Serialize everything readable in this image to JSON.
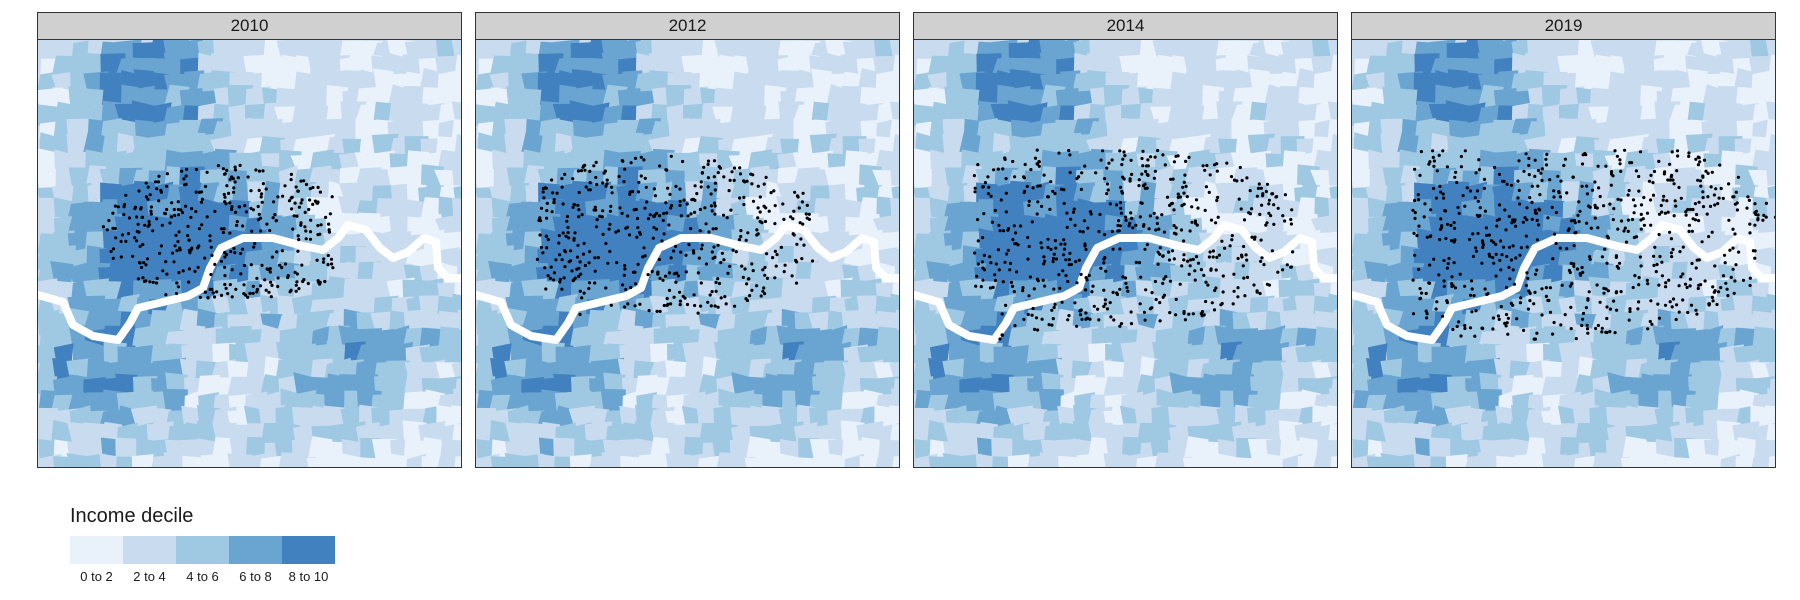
{
  "panels": [
    {
      "year": "2010",
      "spread": 0.0
    },
    {
      "year": "2012",
      "spread": 0.3
    },
    {
      "year": "2014",
      "spread": 0.65
    },
    {
      "year": "2019",
      "spread": 1.0
    }
  ],
  "legend": {
    "title": "Income decile",
    "items": [
      {
        "label": "0 to 2",
        "color": "#e9f1fb"
      },
      {
        "label": "2 to 4",
        "color": "#c9dcef"
      },
      {
        "label": "4 to 6",
        "color": "#9fc8e3"
      },
      {
        "label": "6 to 8",
        "color": "#6aa5d2"
      },
      {
        "label": "8 to 10",
        "color": "#4281bf"
      }
    ]
  },
  "colors": {
    "river": "#ffffff",
    "points": "#000000",
    "strip_background": "#d0d0d0"
  }
}
